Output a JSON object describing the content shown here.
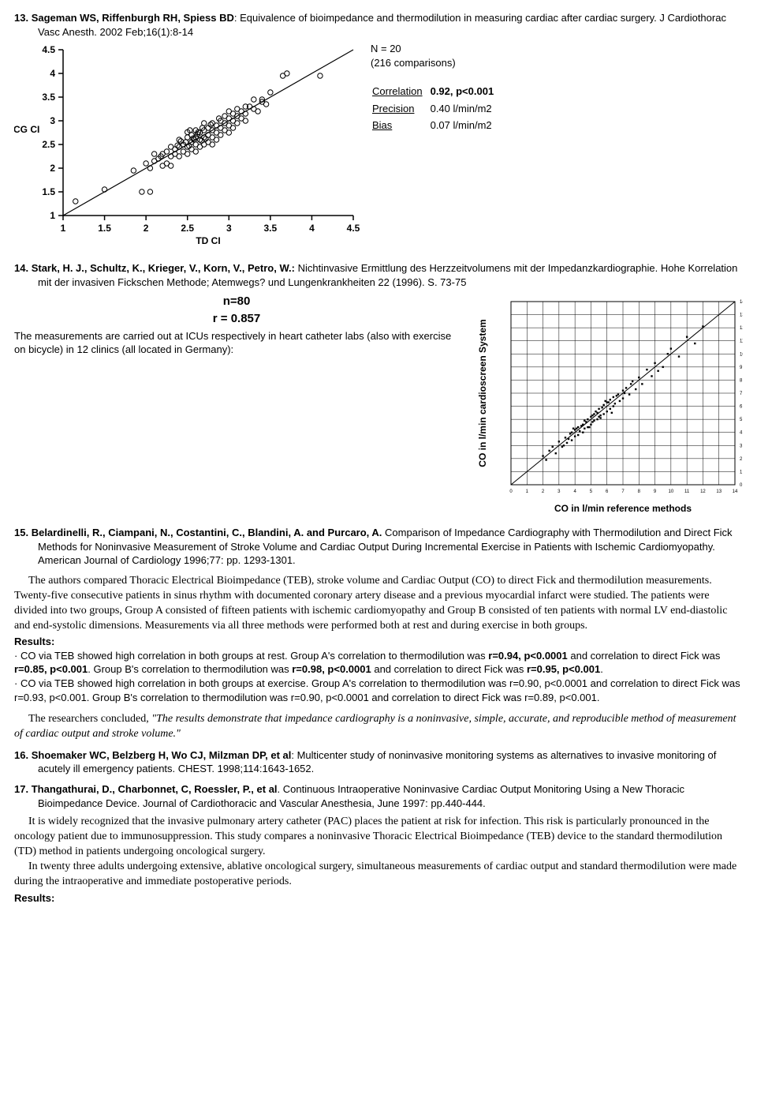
{
  "ref13": {
    "num": "13.",
    "authors": "Sageman WS, Riffenburgh RH, Spiess BD",
    "title": ": Equivalence of bioimpedance and thermodilution in measuring cardiac after cardiac surgery. J Cardiothorac Vasc Anesth. 2002 Feb;16(1):8-14",
    "chart": {
      "type": "scatter",
      "xlabel": "TD CI",
      "ylabel": "ICG CI",
      "xlim": [
        1,
        4.5
      ],
      "ylim": [
        1,
        4.5
      ],
      "tick_step": 0.5,
      "background_color": "#ffffff",
      "axis_color": "#000000",
      "marker_color": "#000000",
      "marker_style": "open-circle",
      "marker_size": 3.2,
      "line_color": "#000000",
      "line_width": 1.2,
      "points": [
        [
          1.15,
          1.3
        ],
        [
          1.5,
          1.55
        ],
        [
          1.95,
          1.5
        ],
        [
          2.05,
          1.5
        ],
        [
          1.85,
          1.95
        ],
        [
          2.0,
          2.1
        ],
        [
          2.05,
          2.0
        ],
        [
          2.1,
          2.15
        ],
        [
          2.1,
          2.3
        ],
        [
          2.15,
          2.2
        ],
        [
          2.18,
          2.25
        ],
        [
          2.2,
          2.05
        ],
        [
          2.2,
          2.3
        ],
        [
          2.25,
          2.35
        ],
        [
          2.25,
          2.1
        ],
        [
          2.3,
          2.05
        ],
        [
          2.3,
          2.25
        ],
        [
          2.3,
          2.45
        ],
        [
          2.35,
          2.3
        ],
        [
          2.35,
          2.4
        ],
        [
          2.4,
          2.25
        ],
        [
          2.4,
          2.45
        ],
        [
          2.4,
          2.6
        ],
        [
          2.45,
          2.35
        ],
        [
          2.45,
          2.5
        ],
        [
          2.48,
          2.55
        ],
        [
          2.5,
          2.3
        ],
        [
          2.5,
          2.45
        ],
        [
          2.5,
          2.65
        ],
        [
          2.5,
          2.76
        ],
        [
          2.53,
          2.8
        ],
        [
          2.55,
          2.4
        ],
        [
          2.55,
          2.55
        ],
        [
          2.55,
          2.7
        ],
        [
          2.58,
          2.6
        ],
        [
          2.6,
          2.35
        ],
        [
          2.6,
          2.5
        ],
        [
          2.6,
          2.65
        ],
        [
          2.6,
          2.8
        ],
        [
          2.62,
          2.72
        ],
        [
          2.63,
          2.76
        ],
        [
          2.65,
          2.45
        ],
        [
          2.65,
          2.6
        ],
        [
          2.65,
          2.75
        ],
        [
          2.7,
          2.5
        ],
        [
          2.7,
          2.65
        ],
        [
          2.7,
          2.8
        ],
        [
          2.7,
          2.95
        ],
        [
          2.75,
          2.55
        ],
        [
          2.75,
          2.7
        ],
        [
          2.75,
          2.85
        ],
        [
          2.78,
          2.92
        ],
        [
          2.8,
          2.5
        ],
        [
          2.8,
          2.65
        ],
        [
          2.8,
          2.8
        ],
        [
          2.8,
          2.95
        ],
        [
          2.85,
          2.6
        ],
        [
          2.85,
          2.75
        ],
        [
          2.85,
          2.9
        ],
        [
          2.88,
          3.05
        ],
        [
          2.9,
          2.7
        ],
        [
          2.9,
          2.85
        ],
        [
          2.9,
          3.0
        ],
        [
          2.95,
          2.8
        ],
        [
          2.95,
          2.95
        ],
        [
          2.95,
          3.1
        ],
        [
          3.0,
          2.75
        ],
        [
          3.0,
          2.9
        ],
        [
          3.0,
          3.05
        ],
        [
          3.0,
          3.2
        ],
        [
          3.05,
          2.85
        ],
        [
          3.05,
          3.0
        ],
        [
          3.05,
          3.15
        ],
        [
          3.1,
          2.95
        ],
        [
          3.1,
          3.1
        ],
        [
          3.1,
          3.25
        ],
        [
          3.15,
          3.05
        ],
        [
          3.15,
          3.2
        ],
        [
          3.2,
          3.0
        ],
        [
          3.2,
          3.15
        ],
        [
          3.2,
          3.3
        ],
        [
          3.25,
          3.3
        ],
        [
          3.3,
          3.25
        ],
        [
          3.3,
          3.45
        ],
        [
          3.35,
          3.2
        ],
        [
          3.4,
          3.4
        ],
        [
          3.4,
          3.45
        ],
        [
          3.45,
          3.35
        ],
        [
          3.5,
          3.6
        ],
        [
          3.65,
          3.95
        ],
        [
          3.7,
          4.0
        ],
        [
          4.1,
          3.95
        ],
        [
          2.38,
          2.48
        ],
        [
          2.42,
          2.57
        ],
        [
          2.52,
          2.47
        ],
        [
          2.57,
          2.63
        ],
        [
          2.67,
          2.58
        ],
        [
          2.68,
          2.85
        ],
        [
          2.72,
          2.62
        ]
      ]
    },
    "stats": {
      "n_line": "N = 20",
      "comp_line": "(216 comparisons)",
      "rows": [
        {
          "label": "Correlation",
          "value": "0.92, p<0.001",
          "bold": true
        },
        {
          "label": "Precision",
          "value": "0.40 l/min/m2",
          "bold": false
        },
        {
          "label": "Bias",
          "value": "0.07 l/min/m2",
          "bold": false
        }
      ]
    }
  },
  "ref14": {
    "num": "14.",
    "authors": "Stark, H. J., Schultz, K., Krieger, V., Korn, V., Petro, W.:",
    "title": " Nichtinvasive Ermittlung des Herzzeitvolumens mit der Impedanzkardiographie. Hohe Korrelation mit der invasiven Fickschen Methode; Atemwegs? und Lungenkrankheiten 22 (1996). S. 73-75",
    "left": {
      "n_line": "n=80",
      "r_line": "r = 0.857",
      "desc": "The measurements are carried out at ICUs respectively in heart catheter labs (also with exercise on bicycle) in 12 clinics (all located in Germany):"
    },
    "chart": {
      "type": "scatter",
      "xlabel": "CO in l/min reference methods",
      "ylabel": "CO in l/min cardioscreen System",
      "xlim": [
        0,
        14
      ],
      "ylim": [
        0,
        14
      ],
      "tick_step": 1,
      "grid_color": "#000000",
      "background_color": "#ffffff",
      "marker_style": "filled-square",
      "marker_size": 2.4,
      "marker_color": "#000000",
      "line_color": "#000000",
      "points": [
        [
          2.0,
          2.2
        ],
        [
          2.4,
          2.6
        ],
        [
          2.8,
          2.4
        ],
        [
          3.0,
          3.3
        ],
        [
          3.2,
          2.9
        ],
        [
          3.4,
          3.6
        ],
        [
          3.5,
          3.2
        ],
        [
          3.6,
          3.5
        ],
        [
          3.8,
          3.4
        ],
        [
          3.8,
          4.0
        ],
        [
          4.0,
          3.7
        ],
        [
          4.0,
          4.2
        ],
        [
          4.2,
          3.8
        ],
        [
          4.2,
          4.4
        ],
        [
          4.3,
          4.1
        ],
        [
          4.4,
          4.5
        ],
        [
          4.5,
          4.0
        ],
        [
          4.5,
          4.6
        ],
        [
          4.6,
          4.3
        ],
        [
          4.7,
          4.8
        ],
        [
          4.8,
          4.4
        ],
        [
          4.8,
          5.0
        ],
        [
          5.0,
          4.6
        ],
        [
          5.0,
          5.2
        ],
        [
          5.1,
          4.8
        ],
        [
          5.2,
          5.4
        ],
        [
          5.2,
          4.9
        ],
        [
          5.3,
          5.6
        ],
        [
          5.4,
          5.0
        ],
        [
          5.4,
          5.5
        ],
        [
          5.5,
          5.2
        ],
        [
          5.5,
          5.8
        ],
        [
          5.6,
          5.3
        ],
        [
          5.7,
          5.9
        ],
        [
          5.8,
          5.4
        ],
        [
          5.8,
          6.1
        ],
        [
          6.0,
          5.6
        ],
        [
          6.0,
          6.3
        ],
        [
          6.2,
          5.8
        ],
        [
          6.2,
          6.5
        ],
        [
          6.4,
          6.0
        ],
        [
          6.4,
          6.7
        ],
        [
          6.5,
          6.2
        ],
        [
          6.7,
          6.9
        ],
        [
          6.8,
          6.4
        ],
        [
          7.0,
          7.2
        ],
        [
          7.0,
          6.6
        ],
        [
          7.2,
          7.4
        ],
        [
          7.4,
          6.9
        ],
        [
          7.5,
          7.7
        ],
        [
          7.8,
          7.3
        ],
        [
          8.0,
          8.2
        ],
        [
          8.2,
          7.7
        ],
        [
          8.5,
          8.8
        ],
        [
          8.8,
          8.3
        ],
        [
          9.0,
          9.3
        ],
        [
          9.5,
          9.0
        ],
        [
          10.0,
          10.4
        ],
        [
          10.5,
          9.8
        ],
        [
          11.0,
          11.3
        ],
        [
          3.3,
          3.0
        ],
        [
          3.7,
          3.9
        ],
        [
          4.1,
          4.3
        ],
        [
          4.6,
          4.9
        ],
        [
          5.1,
          5.3
        ],
        [
          5.6,
          5.1
        ],
        [
          6.1,
          6.3
        ],
        [
          6.6,
          6.8
        ],
        [
          7.1,
          7.0
        ],
        [
          7.6,
          7.9
        ],
        [
          2.2,
          1.9
        ],
        [
          2.6,
          2.9
        ],
        [
          11.5,
          10.8
        ],
        [
          12.0,
          12.1
        ],
        [
          9.2,
          8.7
        ],
        [
          9.8,
          10.0
        ],
        [
          6.3,
          5.5
        ],
        [
          5.9,
          6.4
        ],
        [
          4.9,
          4.4
        ],
        [
          3.9,
          4.3
        ]
      ]
    }
  },
  "ref15": {
    "num": "15.",
    "authors": "Belardinelli, R., Ciampani, N., Costantini, C., Blandini, A. and Purcaro, A.",
    "title": " Comparison of Impedance Cardiography with Thermodilution and Direct Fick Methods for Noninvasive Measurement of Stroke Volume and Cardiac Output During Incremental Exercise in Patients with Ischemic Cardiomyopathy. American Journal of Cardiology 1996;77: pp. 1293-1301.",
    "p1": "The authors compared Thoracic Electrical Bioimpedance (TEB), stroke volume and Cardiac Output (CO) to direct Fick and thermodilution measurements. Twenty-five consecutive patients in sinus rhythm with documented coronary artery disease and a previous myocardial infarct were studied. The patients were divided into two groups, Group A consisted of fifteen patients with ischemic cardiomyopathy and Group B consisted of ten patients with normal LV end-diastolic and end-systolic dimensions. Measurements via all three methods were performed both at rest and during exercise in both groups.",
    "results_hdr": "Results:",
    "b1_a": "· CO via TEB showed high correlation in both groups at rest. Group A's correlation to thermodilution was ",
    "b1_b": "r=0.94, p<0.0001",
    "b1_c": " and correlation to direct Fick was ",
    "b1_d": "r=0.85, p<0.001",
    "b1_e": ". Group B's correlation to thermodilution was ",
    "b1_f": "r=0.98, p<0.0001",
    "b1_g": " and correlation to direct Fick was ",
    "b1_h": "r=0.95, p<0.001",
    "b1_i": ".",
    "b2": "· CO via TEB showed high correlation in both groups at exercise. Group A's correlation to thermodilution was r=0.90, p<0.0001 and correlation to direct Fick was r=0.93, p<0.001. Group B's correlation to thermodilution was r=0.90, p<0.0001 and correlation to direct Fick was r=0.89, p<0.001.",
    "conclusion_a": "The researchers concluded, ",
    "conclusion_b": "\"The results demonstrate that impedance cardiography is a noninvasive, simple, accurate, and reproducible method of measurement of cardiac output and stroke volume.\""
  },
  "ref16": {
    "num": "16.",
    "authors": "Shoemaker WC, Belzberg H, Wo CJ, Milzman DP, et al",
    "title": ": Multicenter study of noninvasive monitoring systems as alternatives to invasive monitoring of acutely ill emergency patients. CHEST. 1998;114:1643-1652."
  },
  "ref17": {
    "num": "17.",
    "authors": "Thangathurai, D., Charbonnet, C, Roessler, P., et al",
    "title": ". Continuous Intraoperative Noninvasive Cardiac Output Monitoring Using a New Thoracic Bioimpedance Device. Journal of Cardiothoracic and Vascular Anesthesia, June 1997: pp.440-444.",
    "p1": "It is widely recognized that the invasive pulmonary artery catheter (PAC) places the patient at risk for infection. This risk is particularly pronounced in the oncology patient due to immunosuppression. This study compares a noninvasive Thoracic Electrical Bioimpedance (TEB) device to the standard thermodilution (TD) method in patients undergoing oncological surgery.",
    "p2": "In twenty three adults undergoing extensive, ablative oncological surgery, simultaneous measurements of cardiac output and standard thermodilution were made during the intraoperative and immediate postoperative periods.",
    "results_hdr": "Results:"
  }
}
